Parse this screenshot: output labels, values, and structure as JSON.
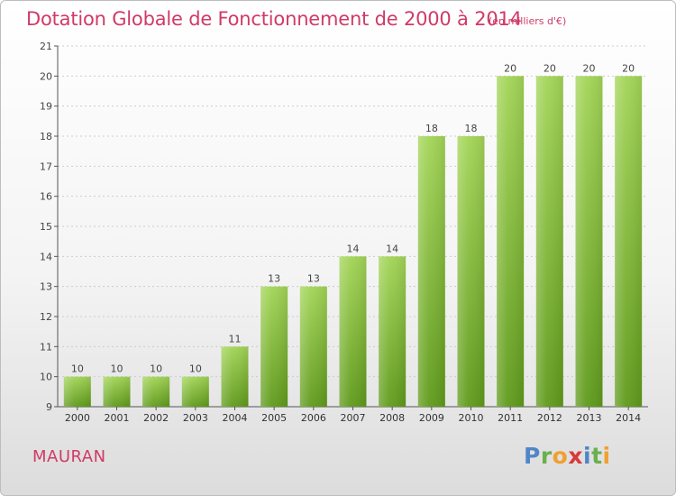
{
  "header": {
    "title": "Dotation Globale de Fonctionnement de 2000 à 2014",
    "subtitle": "(en milliers d'€)"
  },
  "footer": {
    "commune": "MAURAN",
    "brand_letters": [
      {
        "ch": "P",
        "color": "#4f86c6"
      },
      {
        "ch": "r",
        "color": "#6ab04c"
      },
      {
        "ch": "o",
        "color": "#f0a030"
      },
      {
        "ch": "x",
        "color": "#d93a3a"
      },
      {
        "ch": "i",
        "color": "#4f86c6"
      },
      {
        "ch": "t",
        "color": "#6ab04c"
      },
      {
        "ch": "i",
        "color": "#f0a030"
      }
    ]
  },
  "colors": {
    "title": "#d03a67",
    "bar_light": "#a3d557",
    "bar_dark": "#5f9a1b",
    "grid": "#cccccc",
    "axis": "#555555"
  },
  "chart_data": {
    "type": "bar",
    "title": "Dotation Globale de Fonctionnement de 2000 à 2014",
    "unit": "(en milliers d'€)",
    "xlabel": "",
    "ylabel": "",
    "categories": [
      "2000",
      "2001",
      "2002",
      "2003",
      "2004",
      "2005",
      "2006",
      "2007",
      "2008",
      "2009",
      "2010",
      "2011",
      "2012",
      "2013",
      "2014"
    ],
    "values": [
      10,
      10,
      10,
      10,
      11,
      13,
      13,
      14,
      14,
      18,
      18,
      20,
      20,
      20,
      20
    ],
    "ylim": [
      9,
      21
    ],
    "yticks": [
      9,
      10,
      11,
      12,
      13,
      14,
      15,
      16,
      17,
      18,
      19,
      20,
      21
    ],
    "grid": true,
    "data_labels": true
  }
}
